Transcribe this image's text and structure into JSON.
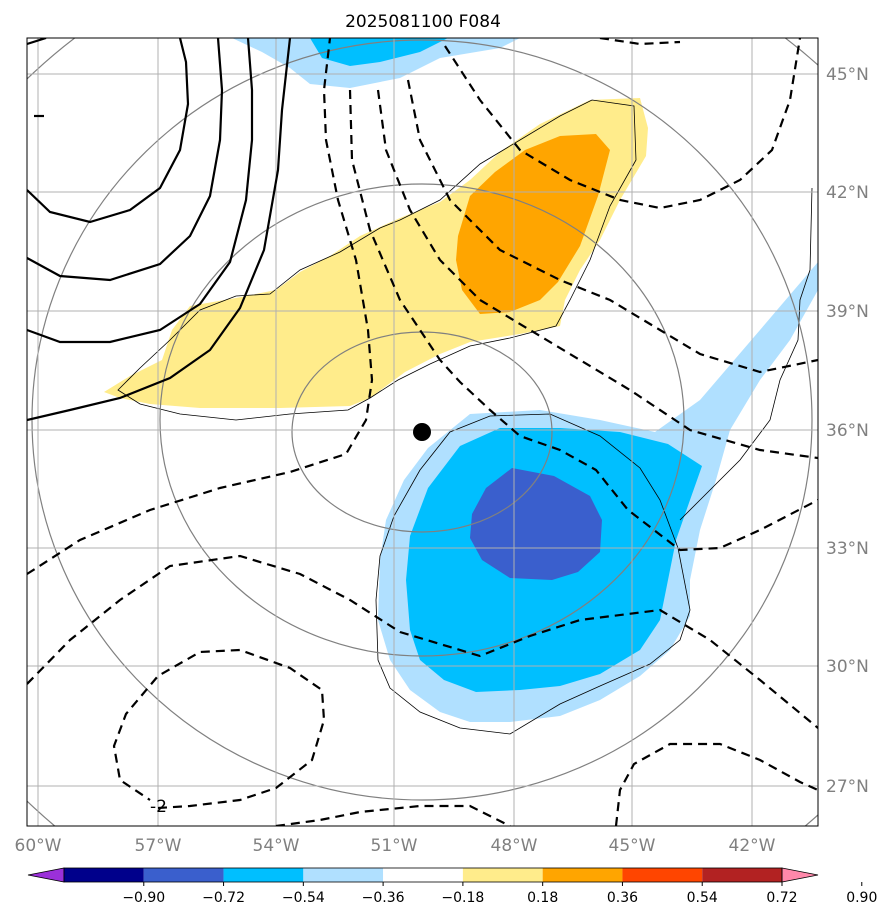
{
  "title": "2025081100 F084",
  "lat_labels": [
    "45°N",
    "42°N",
    "39°N",
    "36°N",
    "33°N",
    "30°N",
    "27°N"
  ],
  "lon_labels": [
    "60°W",
    "57°W",
    "54°W",
    "51°W",
    "48°W",
    "45°W",
    "42°W"
  ],
  "colorbar": {
    "ticks": [
      "−0.90",
      "−0.72",
      "−0.54",
      "−0.36",
      "−0.18",
      "0.18",
      "0.36",
      "0.54",
      "0.72",
      "0.90"
    ],
    "colors": [
      "#9b30d9",
      "#00008b",
      "#3a5fcd",
      "#00bfff",
      "#b0e0ff",
      "#ffffff",
      "#ffec8b",
      "#ffa500",
      "#ff4500",
      "#b22222",
      "#ff88aa"
    ]
  },
  "contour_label": "-2",
  "marker": "storm-center-dot"
}
